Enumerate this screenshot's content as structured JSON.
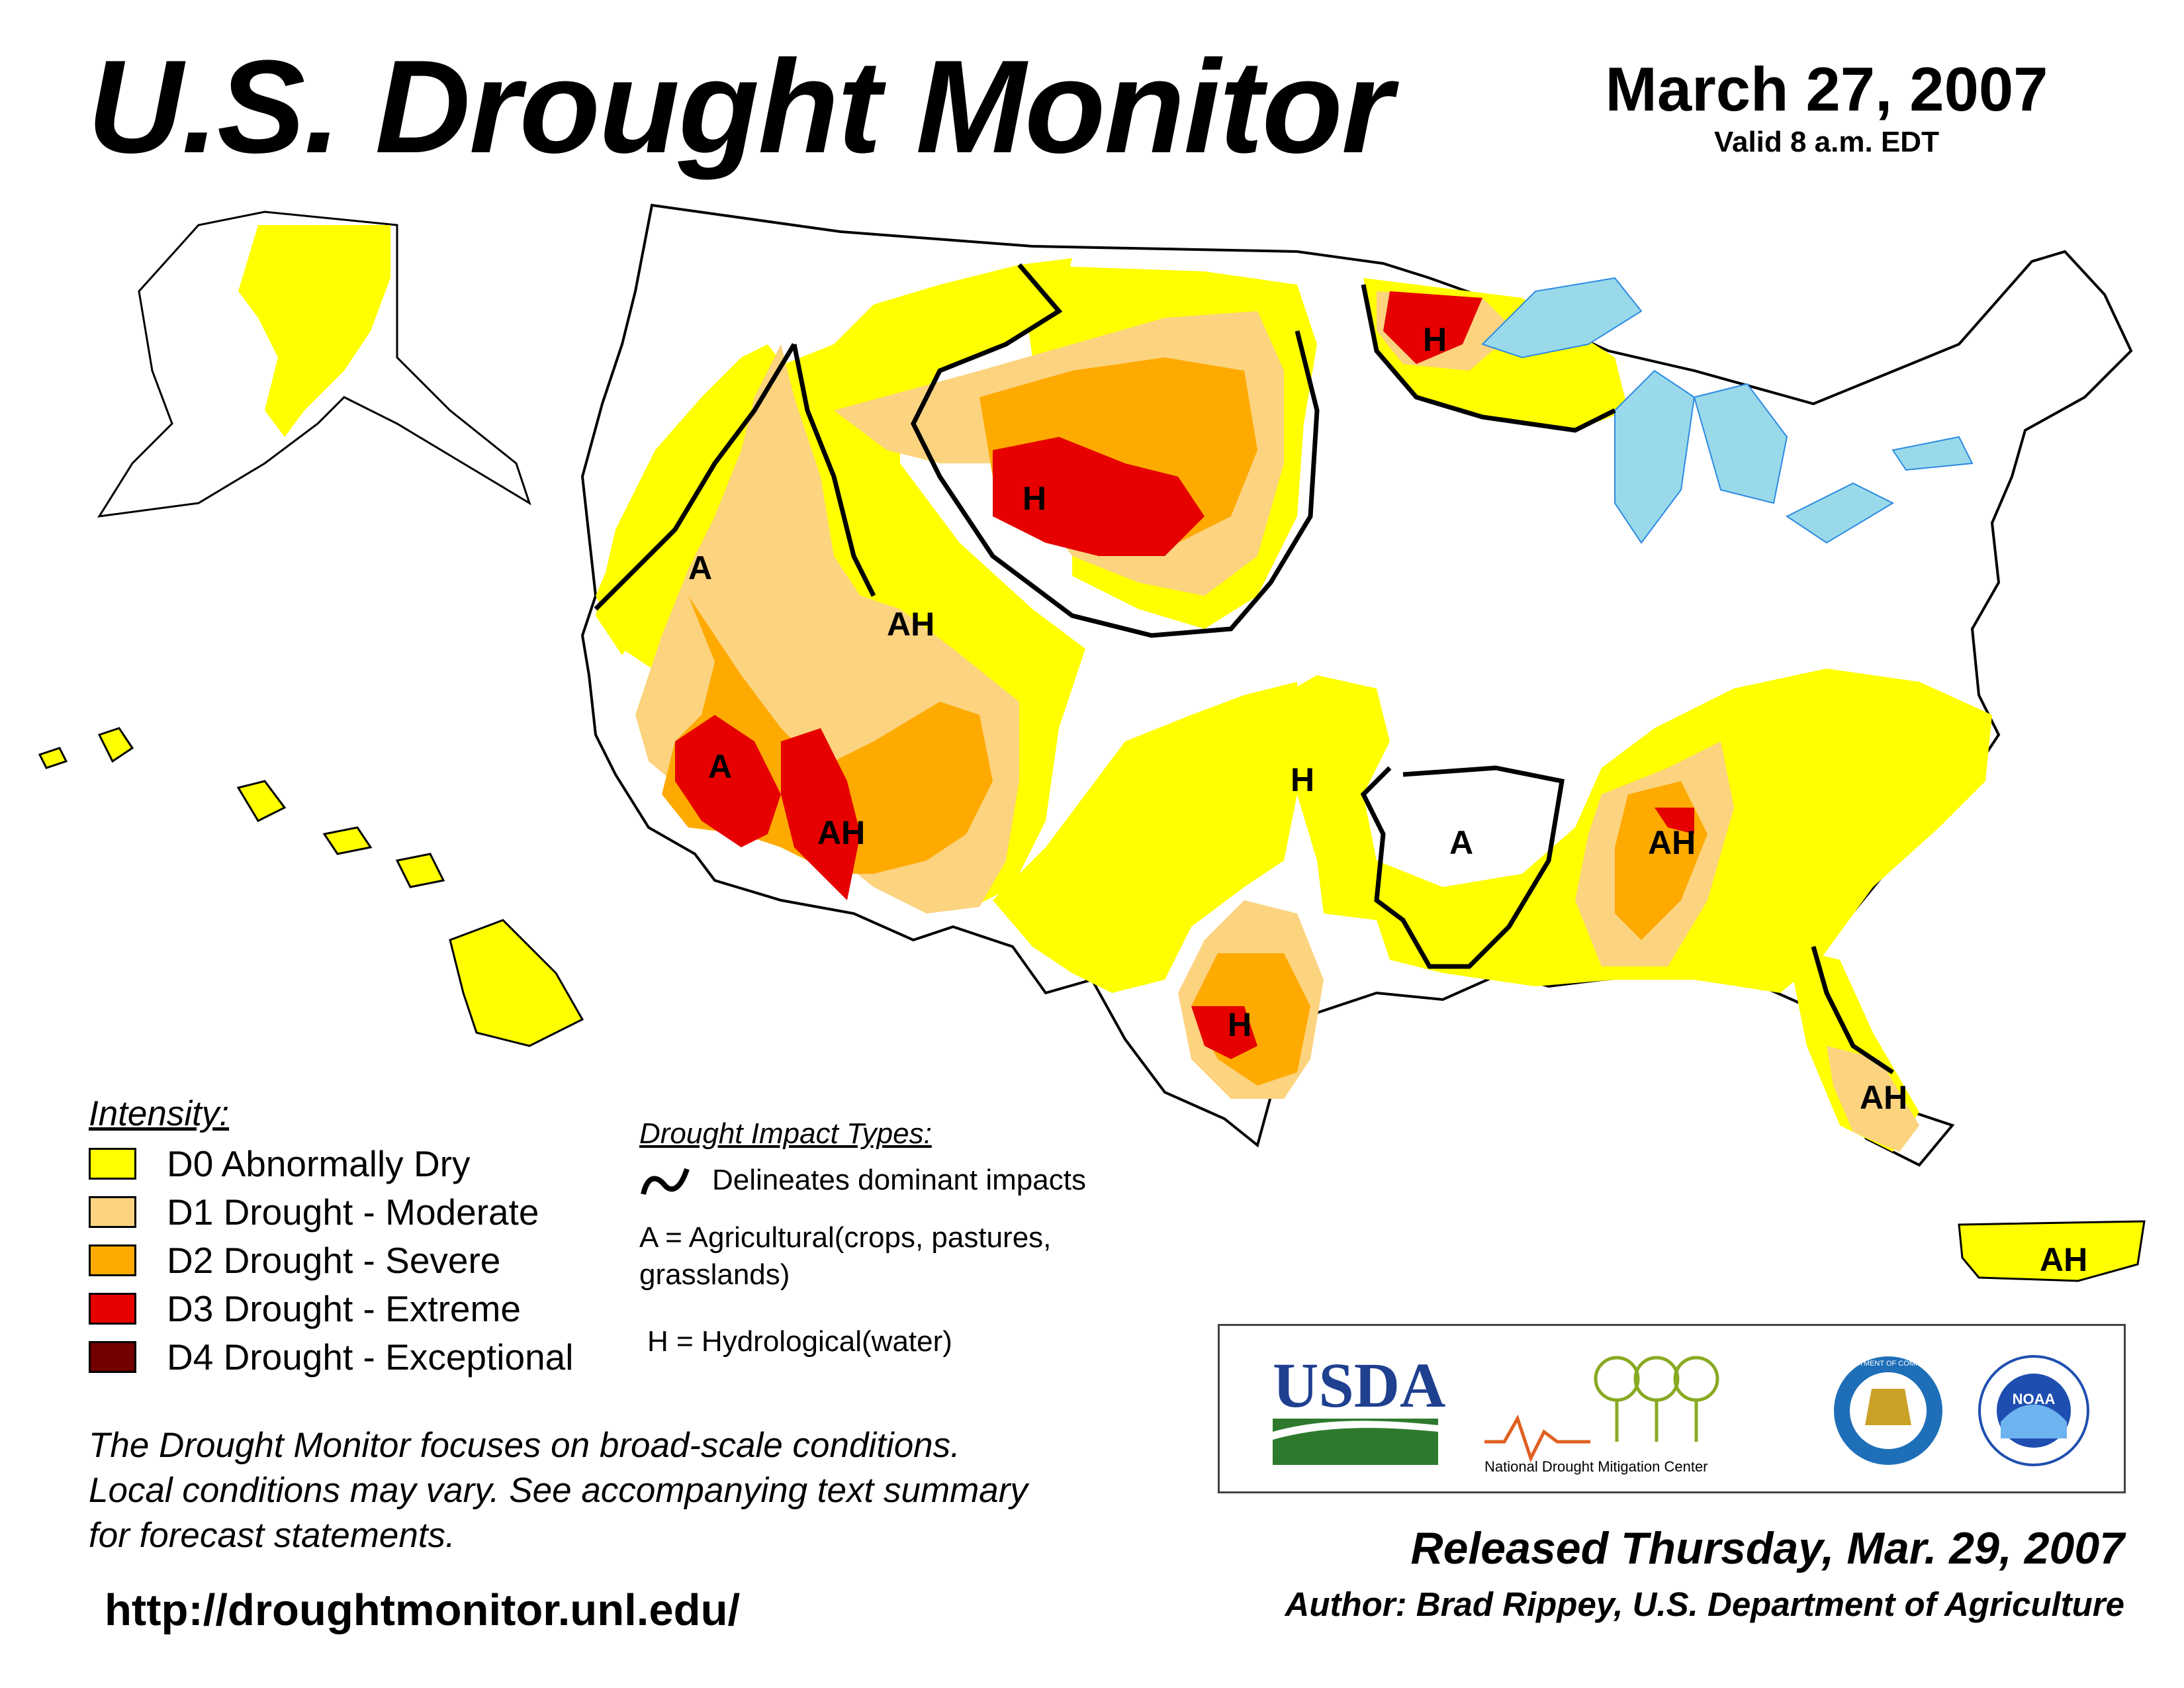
{
  "header": {
    "title": "U.S. Drought Monitor",
    "date": "March 27, 2007",
    "valid": "Valid 8 a.m. EDT"
  },
  "colors": {
    "D0": "#ffff00",
    "D1": "#fcd37f",
    "D2": "#ffaa00",
    "D3": "#e60000",
    "D4": "#730000",
    "water": "#99d9ea",
    "river": "#2b8ae2"
  },
  "map": {
    "impact_labels": [
      "H",
      "A",
      "AH",
      "A",
      "AH",
      "H",
      "A",
      "AH",
      "H",
      "AH",
      "H",
      "AH"
    ]
  },
  "legend": {
    "title": "Intensity:",
    "items": [
      {
        "code": "D0",
        "label": "D0 Abnormally Dry",
        "color": "#ffff00"
      },
      {
        "code": "D1",
        "label": "D1 Drought - Moderate",
        "color": "#fcd37f"
      },
      {
        "code": "D2",
        "label": "D2 Drought - Severe",
        "color": "#ffaa00"
      },
      {
        "code": "D3",
        "label": "D3 Drought - Extreme",
        "color": "#e60000"
      },
      {
        "code": "D4",
        "label": "D4 Drought - Exceptional",
        "color": "#730000"
      }
    ]
  },
  "impacts": {
    "title": "Drought Impact Types:",
    "line_label": "Delineates dominant impacts",
    "a_label": "A = Agricultural(crops, pastures, grasslands)",
    "h_label": "H = Hydrological(water)"
  },
  "note": {
    "line1": "The Drought Monitor focuses on broad-scale conditions.",
    "line2": "Local conditions may vary. See accompanying text summary",
    "line3": "for forecast statements."
  },
  "url": "http://droughtmonitor.unl.edu/",
  "released": "Released Thursday, Mar. 29, 2007",
  "author": "Author: Brad Rippey, U.S. Department of Agriculture",
  "logos": {
    "usda": "USDA",
    "ndmc": "National  Drought Mitigation Center",
    "doc_seal": "DEPARTMENT OF COMMERCE",
    "noaa": "NOAA"
  }
}
